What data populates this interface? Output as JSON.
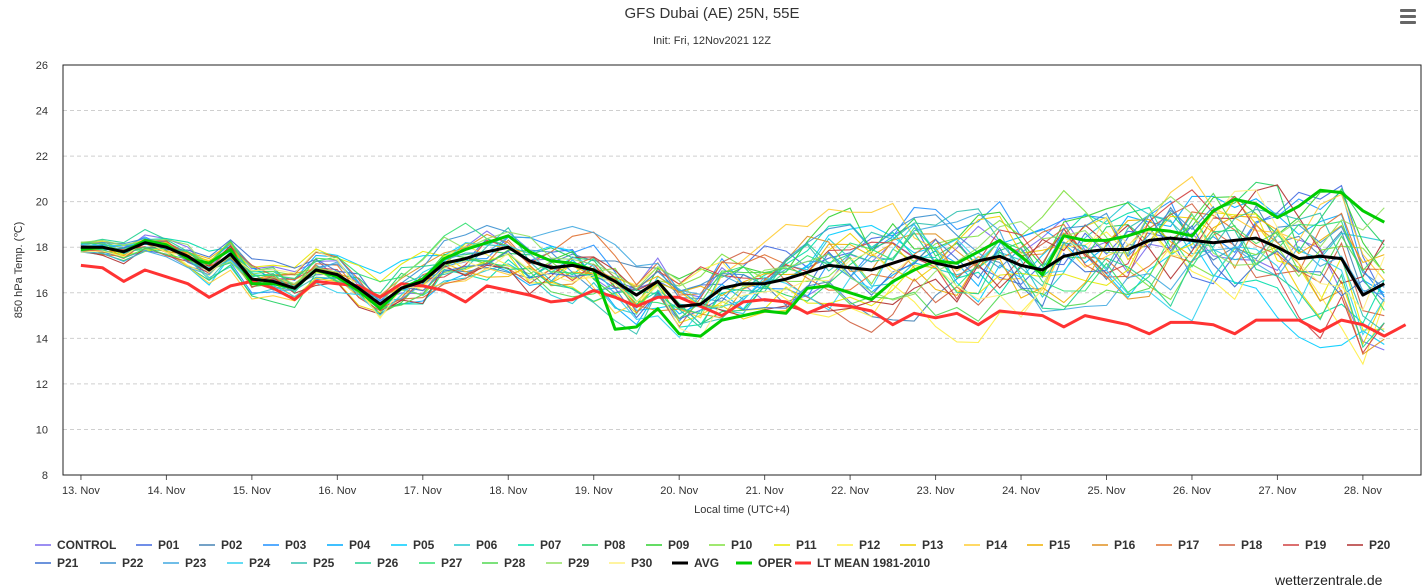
{
  "title": "GFS Dubai (AE) 25N, 55E",
  "subtitle": "Init: Fri, 12Nov2021 12Z",
  "credit": "wetterzentrale.de",
  "menu_icon": "hamburger-menu-icon",
  "chart_data": {
    "type": "line",
    "title": "GFS Dubai (AE) 25N, 55E",
    "subtitle": "Init: Fri, 12Nov2021 12Z",
    "xlabel": "Local time (UTC+4)",
    "ylabel": "850 hPa Temp. (℃)",
    "ylim": [
      8,
      26
    ],
    "yticks": [
      8,
      10,
      12,
      14,
      16,
      18,
      20,
      22,
      24,
      26
    ],
    "xlim": [
      -0.21,
      15.68
    ],
    "x_step_days": 0.25,
    "x_start_day": 0,
    "xtick_labels": [
      "13. Nov",
      "14. Nov",
      "15. Nov",
      "16. Nov",
      "17. Nov",
      "18. Nov",
      "19. Nov",
      "20. Nov",
      "21. Nov",
      "22. Nov",
      "23. Nov",
      "24. Nov",
      "25. Nov",
      "26. Nov",
      "27. Nov",
      "28. Nov"
    ],
    "grid": "horizontal-dashed",
    "legend_position": "bottom",
    "highlight_series": {
      "AVG": {
        "color": "#000000",
        "values": [
          18.0,
          18.0,
          17.8,
          18.2,
          18.0,
          17.6,
          17.0,
          17.7,
          16.6,
          16.5,
          16.2,
          17.0,
          16.8,
          16.2,
          15.5,
          16.2,
          16.5,
          17.3,
          17.5,
          17.8,
          18.0,
          17.4,
          17.1,
          17.2,
          17.0,
          16.5,
          15.9,
          16.5,
          15.4,
          15.5,
          16.2,
          16.4,
          16.4,
          16.6,
          16.9,
          17.2,
          17.1,
          17.0,
          17.3,
          17.6,
          17.3,
          17.1,
          17.4,
          17.6,
          17.2,
          17.0,
          17.6,
          17.8,
          17.9,
          17.9,
          18.3,
          18.4,
          18.3,
          18.2,
          18.3,
          18.4,
          18.0,
          17.5,
          17.6,
          17.5,
          15.9,
          16.4
        ]
      },
      "OPER": {
        "color": "#00cc00",
        "values": [
          17.9,
          18.0,
          17.8,
          18.3,
          18.1,
          17.5,
          17.3,
          17.9,
          16.4,
          16.4,
          16.2,
          17.0,
          16.7,
          16.1,
          15.3,
          16.2,
          16.6,
          17.5,
          17.9,
          18.2,
          18.5,
          17.8,
          17.4,
          17.3,
          17.0,
          14.4,
          14.5,
          15.3,
          14.2,
          14.1,
          14.8,
          15.0,
          15.2,
          15.1,
          16.2,
          16.3,
          16.0,
          15.7,
          16.5,
          17.0,
          17.4,
          17.3,
          17.8,
          18.3,
          17.6,
          16.8,
          18.5,
          18.3,
          18.3,
          18.5,
          18.8,
          18.7,
          18.5,
          19.6,
          20.1,
          19.9,
          19.3,
          19.8,
          20.5,
          20.4,
          19.6,
          19.1
        ]
      },
      "LT MEAN 1981-2010": {
        "color": "#ff3333",
        "values": [
          17.2,
          17.1,
          16.5,
          17.0,
          16.7,
          16.4,
          15.8,
          16.3,
          16.5,
          16.2,
          15.7,
          16.5,
          16.4,
          16.3,
          15.8,
          16.4,
          16.3,
          16.1,
          15.6,
          16.3,
          16.1,
          15.9,
          15.6,
          15.7,
          16.1,
          15.8,
          15.4,
          15.8,
          15.8,
          15.4,
          15.0,
          15.6,
          15.7,
          15.6,
          15.1,
          15.5,
          15.4,
          15.2,
          14.6,
          15.1,
          14.9,
          15.1,
          14.6,
          15.2,
          15.1,
          15.0,
          14.5,
          15.0,
          14.8,
          14.6,
          14.2,
          14.7,
          14.7,
          14.6,
          14.2,
          14.8,
          14.8,
          14.8,
          14.3,
          14.8,
          14.6,
          14.1,
          14.6
        ]
      }
    },
    "ensemble_series": [
      {
        "name": "CONTROL",
        "color": "#7b68ee"
      },
      {
        "name": "P01",
        "color": "#4169e1"
      },
      {
        "name": "P02",
        "color": "#4682b4"
      },
      {
        "name": "P03",
        "color": "#1e90ff"
      },
      {
        "name": "P04",
        "color": "#00aaff"
      },
      {
        "name": "P05",
        "color": "#00ccff"
      },
      {
        "name": "P06",
        "color": "#20c8d0"
      },
      {
        "name": "P07",
        "color": "#00ddaa"
      },
      {
        "name": "P08",
        "color": "#20d060"
      },
      {
        "name": "P09",
        "color": "#30d030"
      },
      {
        "name": "P10",
        "color": "#80e040"
      },
      {
        "name": "P11",
        "color": "#e8e800"
      },
      {
        "name": "P12",
        "color": "#ffee44"
      },
      {
        "name": "P13",
        "color": "#f0d000"
      },
      {
        "name": "P14",
        "color": "#ffcc33"
      },
      {
        "name": "P15",
        "color": "#f0b000"
      },
      {
        "name": "P16",
        "color": "#e09020"
      },
      {
        "name": "P17",
        "color": "#e07030"
      },
      {
        "name": "P18",
        "color": "#d06040"
      },
      {
        "name": "P19",
        "color": "#d04040"
      },
      {
        "name": "P20",
        "color": "#b03030"
      },
      {
        "name": "P21",
        "color": "#3a6fd0"
      },
      {
        "name": "P22",
        "color": "#3a90d0"
      },
      {
        "name": "P23",
        "color": "#40a8e0"
      },
      {
        "name": "P24",
        "color": "#30d0f0"
      },
      {
        "name": "P25",
        "color": "#30c0b0"
      },
      {
        "name": "P26",
        "color": "#20d090"
      },
      {
        "name": "P27",
        "color": "#30e070"
      },
      {
        "name": "P28",
        "color": "#50d850"
      },
      {
        "name": "P29",
        "color": "#90e060"
      },
      {
        "name": "P30",
        "color": "#fff080"
      }
    ],
    "legend": [
      {
        "label": "CONTROL",
        "color": "#7b68ee",
        "bold": false
      },
      {
        "label": "P01",
        "color": "#4169e1",
        "bold": false
      },
      {
        "label": "P02",
        "color": "#4682b4",
        "bold": false
      },
      {
        "label": "P03",
        "color": "#1e90ff",
        "bold": false
      },
      {
        "label": "P04",
        "color": "#00aaff",
        "bold": false
      },
      {
        "label": "P05",
        "color": "#00ccff",
        "bold": false
      },
      {
        "label": "P06",
        "color": "#20c8d0",
        "bold": false
      },
      {
        "label": "P07",
        "color": "#00ddaa",
        "bold": false
      },
      {
        "label": "P08",
        "color": "#20d060",
        "bold": false
      },
      {
        "label": "P09",
        "color": "#30d030",
        "bold": false
      },
      {
        "label": "P10",
        "color": "#80e040",
        "bold": false
      },
      {
        "label": "P11",
        "color": "#e8e800",
        "bold": false
      },
      {
        "label": "P12",
        "color": "#ffee44",
        "bold": false
      },
      {
        "label": "P13",
        "color": "#f0d000",
        "bold": false
      },
      {
        "label": "P14",
        "color": "#ffcc33",
        "bold": false
      },
      {
        "label": "P15",
        "color": "#f0b000",
        "bold": false
      },
      {
        "label": "P16",
        "color": "#e09020",
        "bold": false
      },
      {
        "label": "P17",
        "color": "#e07030",
        "bold": false
      },
      {
        "label": "P18",
        "color": "#d06040",
        "bold": false
      },
      {
        "label": "P19",
        "color": "#d04040",
        "bold": false
      },
      {
        "label": "P20",
        "color": "#b03030",
        "bold": false
      },
      {
        "label": "P21",
        "color": "#3a6fd0",
        "bold": false
      },
      {
        "label": "P22",
        "color": "#3a90d0",
        "bold": false
      },
      {
        "label": "P23",
        "color": "#40a8e0",
        "bold": false
      },
      {
        "label": "P24",
        "color": "#30d0f0",
        "bold": false
      },
      {
        "label": "P25",
        "color": "#30c0b0",
        "bold": false
      },
      {
        "label": "P26",
        "color": "#20d090",
        "bold": false
      },
      {
        "label": "P27",
        "color": "#30e070",
        "bold": false
      },
      {
        "label": "P28",
        "color": "#50d850",
        "bold": false
      },
      {
        "label": "P29",
        "color": "#90e060",
        "bold": false
      },
      {
        "label": "P30",
        "color": "#fff080",
        "bold": false
      },
      {
        "label": "AVG",
        "color": "#000000",
        "bold": true
      },
      {
        "label": "OPER",
        "color": "#00cc00",
        "bold": true
      },
      {
        "label": "LT MEAN 1981-2010",
        "color": "#ff3333",
        "bold": true
      }
    ]
  }
}
